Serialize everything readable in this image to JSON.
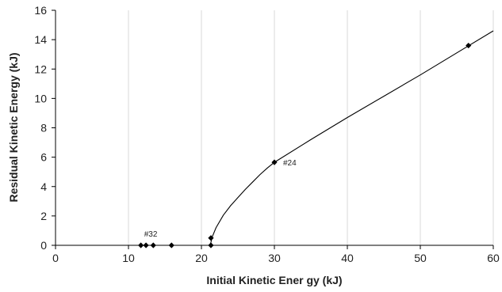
{
  "chart_data": {
    "type": "scatter",
    "title": "",
    "xlabel": "Initial Kinetic Ener gy (kJ)",
    "ylabel": "Residual Kinetic Energy (kJ)",
    "xlim": [
      0,
      60
    ],
    "ylim": [
      0,
      16
    ],
    "xticks": [
      0,
      10,
      20,
      30,
      40,
      50,
      60
    ],
    "yticks": [
      0,
      2,
      4,
      6,
      8,
      10,
      12,
      14,
      16
    ],
    "grid": "vertical",
    "points": [
      {
        "x": 11.7,
        "y": 0
      },
      {
        "x": 12.4,
        "y": 0
      },
      {
        "x": 13.4,
        "y": 0
      },
      {
        "x": 15.9,
        "y": 0
      },
      {
        "x": 21.3,
        "y": 0
      },
      {
        "x": 21.3,
        "y": 0.5
      },
      {
        "x": 30.0,
        "y": 5.65
      },
      {
        "x": 56.6,
        "y": 13.6
      }
    ],
    "fit_curve": {
      "description": "ballistic limit fit",
      "points": [
        {
          "x": 21.2,
          "y": 0
        },
        {
          "x": 21.5,
          "y": 0.6
        },
        {
          "x": 22,
          "y": 1.2
        },
        {
          "x": 23,
          "y": 2.05
        },
        {
          "x": 24,
          "y": 2.7
        },
        {
          "x": 25,
          "y": 3.25
        },
        {
          "x": 26,
          "y": 3.8
        },
        {
          "x": 27,
          "y": 4.3
        },
        {
          "x": 28,
          "y": 4.8
        },
        {
          "x": 29,
          "y": 5.25
        },
        {
          "x": 30,
          "y": 5.65
        },
        {
          "x": 35,
          "y": 7.2
        },
        {
          "x": 40,
          "y": 8.7
        },
        {
          "x": 45,
          "y": 10.15
        },
        {
          "x": 50,
          "y": 11.6
        },
        {
          "x": 55,
          "y": 13.1
        },
        {
          "x": 60,
          "y": 14.6
        }
      ]
    },
    "annotations": [
      {
        "text": "#32",
        "x": 12.4,
        "y": 0
      },
      {
        "text": "#24",
        "x": 30.0,
        "y": 5.65
      }
    ]
  }
}
